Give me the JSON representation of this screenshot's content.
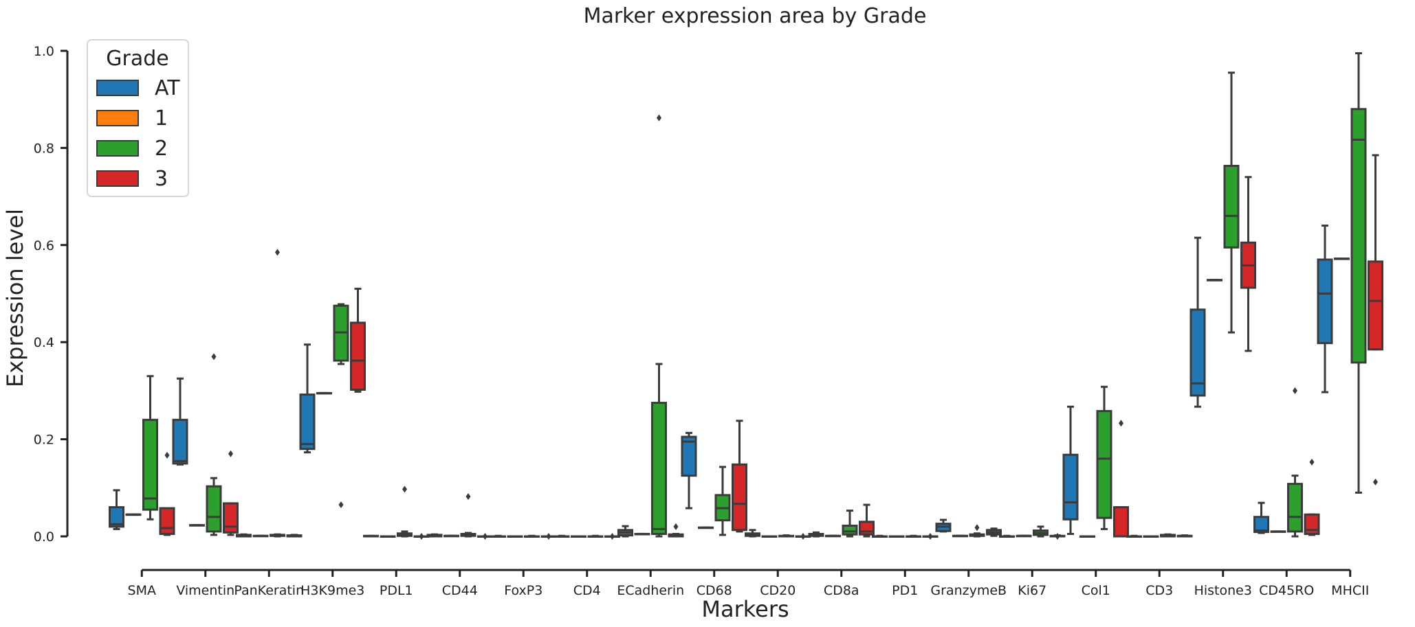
{
  "chart_data": {
    "type": "box",
    "title": "Marker expression area by Grade",
    "xlabel": "Markers",
    "ylabel": "Expression level",
    "ylim": [
      -0.07,
      1.0
    ],
    "yticks": [
      0.0,
      0.2,
      0.4,
      0.6,
      0.8,
      1.0
    ],
    "ytick_labels": [
      "0.0",
      "0.2",
      "0.4",
      "0.6",
      "0.8",
      "1.0"
    ],
    "categories": [
      "SMA",
      "Vimentin",
      "PanKeratin",
      "H3K9me3",
      "PDL1",
      "CD44",
      "FoxP3",
      "CD4",
      "ECadherin",
      "CD68",
      "CD20",
      "CD8a",
      "PD1",
      "GranzymeB",
      "Ki67",
      "Col1",
      "CD3",
      "Histone3",
      "CD45RO",
      "MHCII"
    ],
    "grid": false,
    "legend": {
      "title": "Grade",
      "placement": "top-left",
      "entries": [
        {
          "label": "AT",
          "color": "#1f77b4"
        },
        {
          "label": "1",
          "color": "#ff7f0e"
        },
        {
          "label": "2",
          "color": "#2ca02c"
        },
        {
          "label": "3",
          "color": "#d62728"
        }
      ]
    },
    "series": [
      {
        "grade": "AT",
        "color": "#1f77b4",
        "boxes": [
          {
            "lw": 0.015,
            "q1": 0.02,
            "med": 0.025,
            "q3": 0.06,
            "hw": 0.095,
            "outliers": []
          },
          {
            "lw": 0.148,
            "q1": 0.15,
            "med": 0.155,
            "q3": 0.24,
            "hw": 0.325,
            "outliers": []
          },
          {
            "lw": 0.0,
            "q1": 0.0,
            "med": 0.002,
            "q3": 0.003,
            "hw": 0.004,
            "outliers": []
          },
          {
            "lw": 0.173,
            "q1": 0.18,
            "med": 0.19,
            "q3": 0.292,
            "hw": 0.395,
            "outliers": []
          },
          {
            "lw": 0.0,
            "q1": 0.0,
            "med": 0.0,
            "q3": 0.001,
            "hw": 0.001,
            "outliers": []
          },
          {
            "lw": 0.0,
            "q1": 0.0,
            "med": 0.002,
            "q3": 0.003,
            "hw": 0.004,
            "outliers": []
          },
          {
            "lw": 0.0,
            "q1": 0.0,
            "med": 0.0,
            "q3": 0.0,
            "hw": 0.001,
            "outliers": []
          },
          {
            "lw": 0.0,
            "q1": 0.0,
            "med": 0.0,
            "q3": 0.0,
            "hw": 0.001,
            "outliers": []
          },
          {
            "lw": 0.0,
            "q1": 0.002,
            "med": 0.008,
            "q3": 0.013,
            "hw": 0.021,
            "outliers": []
          },
          {
            "lw": 0.058,
            "q1": 0.125,
            "med": 0.195,
            "q3": 0.205,
            "hw": 0.213,
            "outliers": []
          },
          {
            "lw": 0.0,
            "q1": 0.001,
            "med": 0.004,
            "q3": 0.006,
            "hw": 0.013,
            "outliers": []
          },
          {
            "lw": 0.0,
            "q1": 0.001,
            "med": 0.003,
            "q3": 0.005,
            "hw": 0.008,
            "outliers": []
          },
          {
            "lw": 0.0,
            "q1": 0.0,
            "med": 0.0,
            "q3": 0.0,
            "hw": 0.001,
            "outliers": []
          },
          {
            "lw": 0.01,
            "q1": 0.011,
            "med": 0.02,
            "q3": 0.026,
            "hw": 0.034,
            "outliers": []
          },
          {
            "lw": 0.0,
            "q1": 0.0,
            "med": 0.0,
            "q3": 0.0,
            "hw": 0.001,
            "outliers": []
          },
          {
            "lw": 0.005,
            "q1": 0.035,
            "med": 0.07,
            "q3": 0.168,
            "hw": 0.267,
            "outliers": []
          },
          {
            "lw": 0.0,
            "q1": 0.0,
            "med": 0.0,
            "q3": 0.0,
            "hw": 0.001,
            "outliers": []
          },
          {
            "lw": 0.267,
            "q1": 0.29,
            "med": 0.315,
            "q3": 0.467,
            "hw": 0.615,
            "outliers": []
          },
          {
            "lw": 0.007,
            "q1": 0.009,
            "med": 0.012,
            "q3": 0.04,
            "hw": 0.069,
            "outliers": []
          },
          {
            "lw": 0.297,
            "q1": 0.398,
            "med": 0.5,
            "q3": 0.57,
            "hw": 0.64,
            "outliers": []
          }
        ]
      },
      {
        "grade": "1",
        "color": "#ff7f0e",
        "boxes": [
          {
            "lw": 0.045,
            "q1": 0.045,
            "med": 0.045,
            "q3": 0.045,
            "hw": 0.045,
            "outliers": []
          },
          {
            "lw": 0.023,
            "q1": 0.023,
            "med": 0.023,
            "q3": 0.023,
            "hw": 0.023,
            "outliers": []
          },
          {
            "lw": 0.001,
            "q1": 0.001,
            "med": 0.001,
            "q3": 0.001,
            "hw": 0.001,
            "outliers": []
          },
          {
            "lw": 0.295,
            "q1": 0.295,
            "med": 0.295,
            "q3": 0.295,
            "hw": 0.295,
            "outliers": []
          },
          {
            "lw": 0.0,
            "q1": 0.0,
            "med": 0.0,
            "q3": 0.0,
            "hw": 0.0,
            "outliers": []
          },
          {
            "lw": 0.001,
            "q1": 0.001,
            "med": 0.001,
            "q3": 0.001,
            "hw": 0.001,
            "outliers": []
          },
          {
            "lw": 0.0,
            "q1": 0.0,
            "med": 0.0,
            "q3": 0.0,
            "hw": 0.0,
            "outliers": []
          },
          {
            "lw": 0.0,
            "q1": 0.0,
            "med": 0.0,
            "q3": 0.0,
            "hw": 0.0,
            "outliers": []
          },
          {
            "lw": 0.005,
            "q1": 0.005,
            "med": 0.005,
            "q3": 0.005,
            "hw": 0.005,
            "outliers": []
          },
          {
            "lw": 0.018,
            "q1": 0.018,
            "med": 0.018,
            "q3": 0.018,
            "hw": 0.018,
            "outliers": []
          },
          {
            "lw": 0.0,
            "q1": 0.0,
            "med": 0.0,
            "q3": 0.0,
            "hw": 0.0,
            "outliers": []
          },
          {
            "lw": 0.001,
            "q1": 0.001,
            "med": 0.001,
            "q3": 0.001,
            "hw": 0.001,
            "outliers": []
          },
          {
            "lw": 0.0,
            "q1": 0.0,
            "med": 0.0,
            "q3": 0.0,
            "hw": 0.0,
            "outliers": []
          },
          {
            "lw": 0.001,
            "q1": 0.001,
            "med": 0.001,
            "q3": 0.001,
            "hw": 0.001,
            "outliers": []
          },
          {
            "lw": 0.001,
            "q1": 0.001,
            "med": 0.001,
            "q3": 0.001,
            "hw": 0.001,
            "outliers": []
          },
          {
            "lw": 0.0,
            "q1": 0.0,
            "med": 0.0,
            "q3": 0.0,
            "hw": 0.0,
            "outliers": []
          },
          {
            "lw": 0.0,
            "q1": 0.0,
            "med": 0.0,
            "q3": 0.0,
            "hw": 0.0,
            "outliers": []
          },
          {
            "lw": 0.528,
            "q1": 0.528,
            "med": 0.528,
            "q3": 0.528,
            "hw": 0.528,
            "outliers": []
          },
          {
            "lw": 0.01,
            "q1": 0.01,
            "med": 0.01,
            "q3": 0.01,
            "hw": 0.01,
            "outliers": []
          },
          {
            "lw": 0.572,
            "q1": 0.572,
            "med": 0.572,
            "q3": 0.572,
            "hw": 0.572,
            "outliers": []
          }
        ]
      },
      {
        "grade": "2",
        "color": "#2ca02c",
        "boxes": [
          {
            "lw": 0.035,
            "q1": 0.055,
            "med": 0.078,
            "q3": 0.24,
            "hw": 0.33,
            "outliers": []
          },
          {
            "lw": 0.003,
            "q1": 0.01,
            "med": 0.04,
            "q3": 0.103,
            "hw": 0.12,
            "outliers": [
              0.37
            ]
          },
          {
            "lw": 0.0,
            "q1": 0.001,
            "med": 0.002,
            "q3": 0.003,
            "hw": 0.004,
            "outliers": [
              0.585
            ]
          },
          {
            "lw": 0.355,
            "q1": 0.362,
            "med": 0.42,
            "q3": 0.475,
            "hw": 0.478,
            "outliers": [
              0.065
            ]
          },
          {
            "lw": 0.0,
            "q1": 0.001,
            "med": 0.002,
            "q3": 0.006,
            "hw": 0.01,
            "outliers": [
              0.097
            ]
          },
          {
            "lw": 0.0,
            "q1": 0.001,
            "med": 0.003,
            "q3": 0.005,
            "hw": 0.007,
            "outliers": [
              0.082
            ]
          },
          {
            "lw": 0.0,
            "q1": 0.0,
            "med": 0.0,
            "q3": 0.0,
            "hw": 0.001,
            "outliers": []
          },
          {
            "lw": 0.0,
            "q1": 0.0,
            "med": 0.0,
            "q3": 0.0,
            "hw": 0.001,
            "outliers": []
          },
          {
            "lw": 0.0,
            "q1": 0.005,
            "med": 0.015,
            "q3": 0.275,
            "hw": 0.355,
            "outliers": [
              0.862
            ]
          },
          {
            "lw": 0.003,
            "q1": 0.033,
            "med": 0.058,
            "q3": 0.085,
            "hw": 0.143,
            "outliers": []
          },
          {
            "lw": 0.0,
            "q1": 0.0,
            "med": 0.0,
            "q3": 0.001,
            "hw": 0.002,
            "outliers": []
          },
          {
            "lw": 0.0,
            "q1": 0.004,
            "med": 0.01,
            "q3": 0.022,
            "hw": 0.053,
            "outliers": []
          },
          {
            "lw": 0.0,
            "q1": 0.0,
            "med": 0.0,
            "q3": 0.0,
            "hw": 0.001,
            "outliers": []
          },
          {
            "lw": 0.0,
            "q1": 0.001,
            "med": 0.002,
            "q3": 0.004,
            "hw": 0.006,
            "outliers": [
              0.018
            ]
          },
          {
            "lw": 0.0,
            "q1": 0.003,
            "med": 0.007,
            "q3": 0.012,
            "hw": 0.02,
            "outliers": []
          },
          {
            "lw": 0.015,
            "q1": 0.038,
            "med": 0.16,
            "q3": 0.258,
            "hw": 0.308,
            "outliers": []
          },
          {
            "lw": 0.0,
            "q1": 0.0,
            "med": 0.002,
            "q3": 0.003,
            "hw": 0.004,
            "outliers": []
          },
          {
            "lw": 0.42,
            "q1": 0.595,
            "med": 0.66,
            "q3": 0.763,
            "hw": 0.955,
            "outliers": []
          },
          {
            "lw": 0.0,
            "q1": 0.01,
            "med": 0.04,
            "q3": 0.108,
            "hw": 0.125,
            "outliers": [
              0.3
            ]
          },
          {
            "lw": 0.09,
            "q1": 0.358,
            "med": 0.817,
            "q3": 0.88,
            "hw": 0.995,
            "outliers": []
          }
        ]
      },
      {
        "grade": "3",
        "color": "#d62728",
        "boxes": [
          {
            "lw": 0.003,
            "q1": 0.005,
            "med": 0.017,
            "q3": 0.058,
            "hw": 0.058,
            "outliers": [
              0.167
            ]
          },
          {
            "lw": 0.003,
            "q1": 0.008,
            "med": 0.02,
            "q3": 0.068,
            "hw": 0.068,
            "outliers": [
              0.17
            ]
          },
          {
            "lw": 0.0,
            "q1": 0.0,
            "med": 0.001,
            "q3": 0.002,
            "hw": 0.003,
            "outliers": []
          },
          {
            "lw": 0.298,
            "q1": 0.302,
            "med": 0.362,
            "q3": 0.44,
            "hw": 0.51,
            "outliers": []
          },
          {
            "lw": 0.0,
            "q1": 0.0,
            "med": 0.0,
            "q3": 0.0,
            "hw": 0.0,
            "outliers": [
              0.0
            ]
          },
          {
            "lw": 0.0,
            "q1": 0.0,
            "med": 0.0,
            "q3": 0.0,
            "hw": 0.0,
            "outliers": [
              0.0
            ]
          },
          {
            "lw": 0.0,
            "q1": 0.0,
            "med": 0.0,
            "q3": 0.0,
            "hw": 0.0,
            "outliers": [
              0.0
            ]
          },
          {
            "lw": 0.0,
            "q1": 0.0,
            "med": 0.0,
            "q3": 0.0,
            "hw": 0.0,
            "outliers": [
              0.0
            ]
          },
          {
            "lw": 0.0,
            "q1": 0.0,
            "med": 0.002,
            "q3": 0.004,
            "hw": 0.005,
            "outliers": [
              0.02
            ]
          },
          {
            "lw": 0.01,
            "q1": 0.013,
            "med": 0.067,
            "q3": 0.148,
            "hw": 0.238,
            "outliers": []
          },
          {
            "lw": 0.0,
            "q1": 0.0,
            "med": 0.0,
            "q3": 0.0,
            "hw": 0.0,
            "outliers": [
              0.0
            ]
          },
          {
            "lw": 0.0,
            "q1": 0.004,
            "med": 0.01,
            "q3": 0.03,
            "hw": 0.065,
            "outliers": []
          },
          {
            "lw": 0.0,
            "q1": 0.0,
            "med": 0.0,
            "q3": 0.0,
            "hw": 0.0,
            "outliers": [
              0.0
            ]
          },
          {
            "lw": 0.001,
            "q1": 0.004,
            "med": 0.008,
            "q3": 0.013,
            "hw": 0.016,
            "outliers": []
          },
          {
            "lw": 0.0,
            "q1": 0.0,
            "med": 0.0,
            "q3": 0.001,
            "hw": 0.002,
            "outliers": [
              0.0
            ]
          },
          {
            "lw": 0.0,
            "q1": 0.0,
            "med": 0.0,
            "q3": 0.06,
            "hw": 0.06,
            "outliers": [
              0.233
            ]
          },
          {
            "lw": 0.0,
            "q1": 0.0,
            "med": 0.001,
            "q3": 0.001,
            "hw": 0.002,
            "outliers": []
          },
          {
            "lw": 0.382,
            "q1": 0.512,
            "med": 0.558,
            "q3": 0.605,
            "hw": 0.74,
            "outliers": []
          },
          {
            "lw": 0.003,
            "q1": 0.005,
            "med": 0.013,
            "q3": 0.045,
            "hw": 0.045,
            "outliers": [
              0.153
            ]
          },
          {
            "lw": 0.385,
            "q1": 0.385,
            "med": 0.485,
            "q3": 0.566,
            "hw": 0.785,
            "outliers": [
              0.112
            ]
          }
        ]
      }
    ]
  }
}
